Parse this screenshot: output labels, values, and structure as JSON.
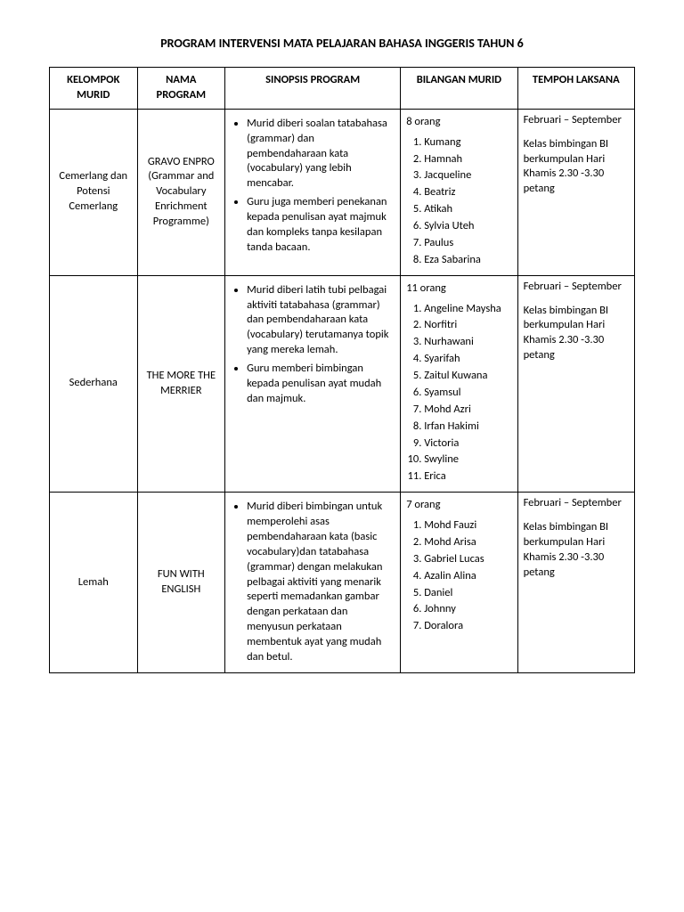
{
  "title": "PROGRAM INTERVENSI MATA PELAJARAN  BAHASA INGGERIS TAHUN 6",
  "headers": {
    "c1": "KELOMPOK MURID",
    "c2": "NAMA PROGRAM",
    "c3": "SINOPSIS PROGRAM",
    "c4": "BILANGAN MURID",
    "c5": "TEMPOH LAKSANA"
  },
  "rows": [
    {
      "kelompok": "Cemerlang dan Potensi Cemerlang",
      "nama": "GRAVO ENPRO (Grammar and Vocabulary Enrichment Programme)",
      "sinopsis": [
        "Murid diberi soalan tatabahasa (grammar) dan pembendaharaan kata (vocabulary) yang lebih mencabar.",
        "Guru juga memberi penekanan kepada penulisan ayat majmuk dan kompleks tanpa kesilapan tanda bacaan."
      ],
      "count": "8 orang",
      "murid": [
        "Kumang",
        "Hamnah",
        "Jacqueline",
        "Beatriz",
        "Atikah",
        "Sylvia Uteh",
        "Paulus",
        "Eza Sabarina"
      ],
      "tempoh_head": "Februari – September",
      "tempoh_detail": "Kelas bimbingan BI berkumpulan Hari Khamis 2.30 -3.30 petang"
    },
    {
      "kelompok": "Sederhana",
      "nama": "THE MORE THE MERRIER",
      "sinopsis": [
        "Murid diberi latih tubi pelbagai aktiviti tatabahasa (grammar) dan pembendaharaan kata (vocabulary) terutamanya topik yang mereka lemah.",
        "Guru memberi bimbingan kepada penulisan ayat mudah dan majmuk."
      ],
      "count": "11  orang",
      "murid": [
        "Angeline Maysha",
        "Norfitri",
        "Nurhawani",
        "Syarifah",
        "Zaitul Kuwana",
        "Syamsul",
        "Mohd Azri",
        "Irfan Hakimi",
        "Victoria",
        "Swyline",
        "Erica"
      ],
      "tempoh_head": "Februari – September",
      "tempoh_detail": "Kelas bimbingan BI berkumpulan Hari Khamis 2.30 -3.30 petang"
    },
    {
      "kelompok": "Lemah",
      "nama": "FUN WITH ENGLISH",
      "sinopsis": [
        "Murid diberi bimbingan untuk memperolehi asas pembendaharaan kata (basic vocabulary)dan tatabahasa (grammar) dengan melakukan pelbagai aktiviti yang menarik seperti memadankan gambar dengan perkataan dan menyusun perkataan membentuk ayat yang mudah dan betul."
      ],
      "count": "7 orang",
      "murid": [
        "Mohd Fauzi",
        "Mohd Arisa",
        "Gabriel Lucas",
        "Azalin Alina",
        "Daniel",
        "Johnny",
        "Doralora"
      ],
      "tempoh_head": "Februari – September",
      "tempoh_detail": "Kelas bimbingan BI berkumpulan Hari Khamis 2.30 -3.30 petang"
    }
  ]
}
